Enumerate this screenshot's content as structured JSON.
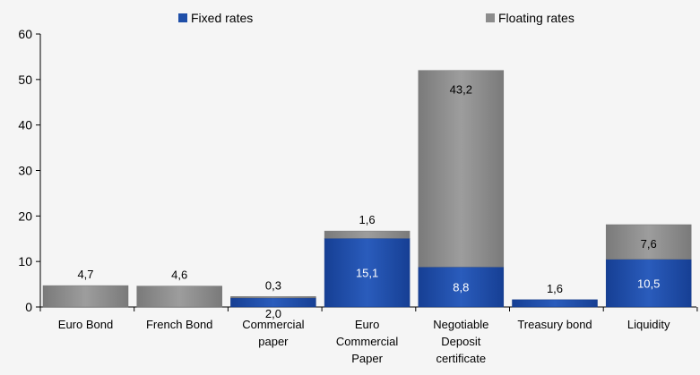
{
  "chart_data": {
    "type": "bar",
    "stacked": true,
    "categories": [
      "Euro Bond",
      "French Bond",
      "Commercial paper",
      "Euro Commercial Paper",
      "Negotiable Deposit certificate",
      "Treasury bond",
      "Liquidity"
    ],
    "category_lines": [
      [
        "Euro Bond"
      ],
      [
        "French Bond"
      ],
      [
        "Commercial",
        "paper"
      ],
      [
        "Euro",
        "Commercial",
        "Paper"
      ],
      [
        "Negotiable",
        "Deposit",
        "certificate"
      ],
      [
        "Treasury bond"
      ],
      [
        "Liquidity"
      ]
    ],
    "series": [
      {
        "name": "Fixed rates",
        "color": "#1f4fa8",
        "values": [
          0,
          0,
          2.0,
          15.1,
          8.8,
          1.6,
          10.5
        ],
        "labels": [
          "",
          "",
          "2,0",
          "15,1",
          "8,8",
          "1,6",
          "10,5"
        ]
      },
      {
        "name": "Floating rates",
        "color": "#8c8c8c",
        "values": [
          4.7,
          4.6,
          0.3,
          1.6,
          43.2,
          0,
          7.6
        ],
        "labels": [
          "4,7",
          "4,6",
          "0,3",
          "1,6",
          "43,2",
          "",
          "7,6"
        ]
      }
    ],
    "y_ticks": [
      "0",
      "10",
      "20",
      "30",
      "40",
      "50",
      "60"
    ],
    "ylim": [
      0,
      60
    ],
    "grid": false,
    "legend": "top",
    "title": "",
    "xlabel": "",
    "ylabel": ""
  }
}
